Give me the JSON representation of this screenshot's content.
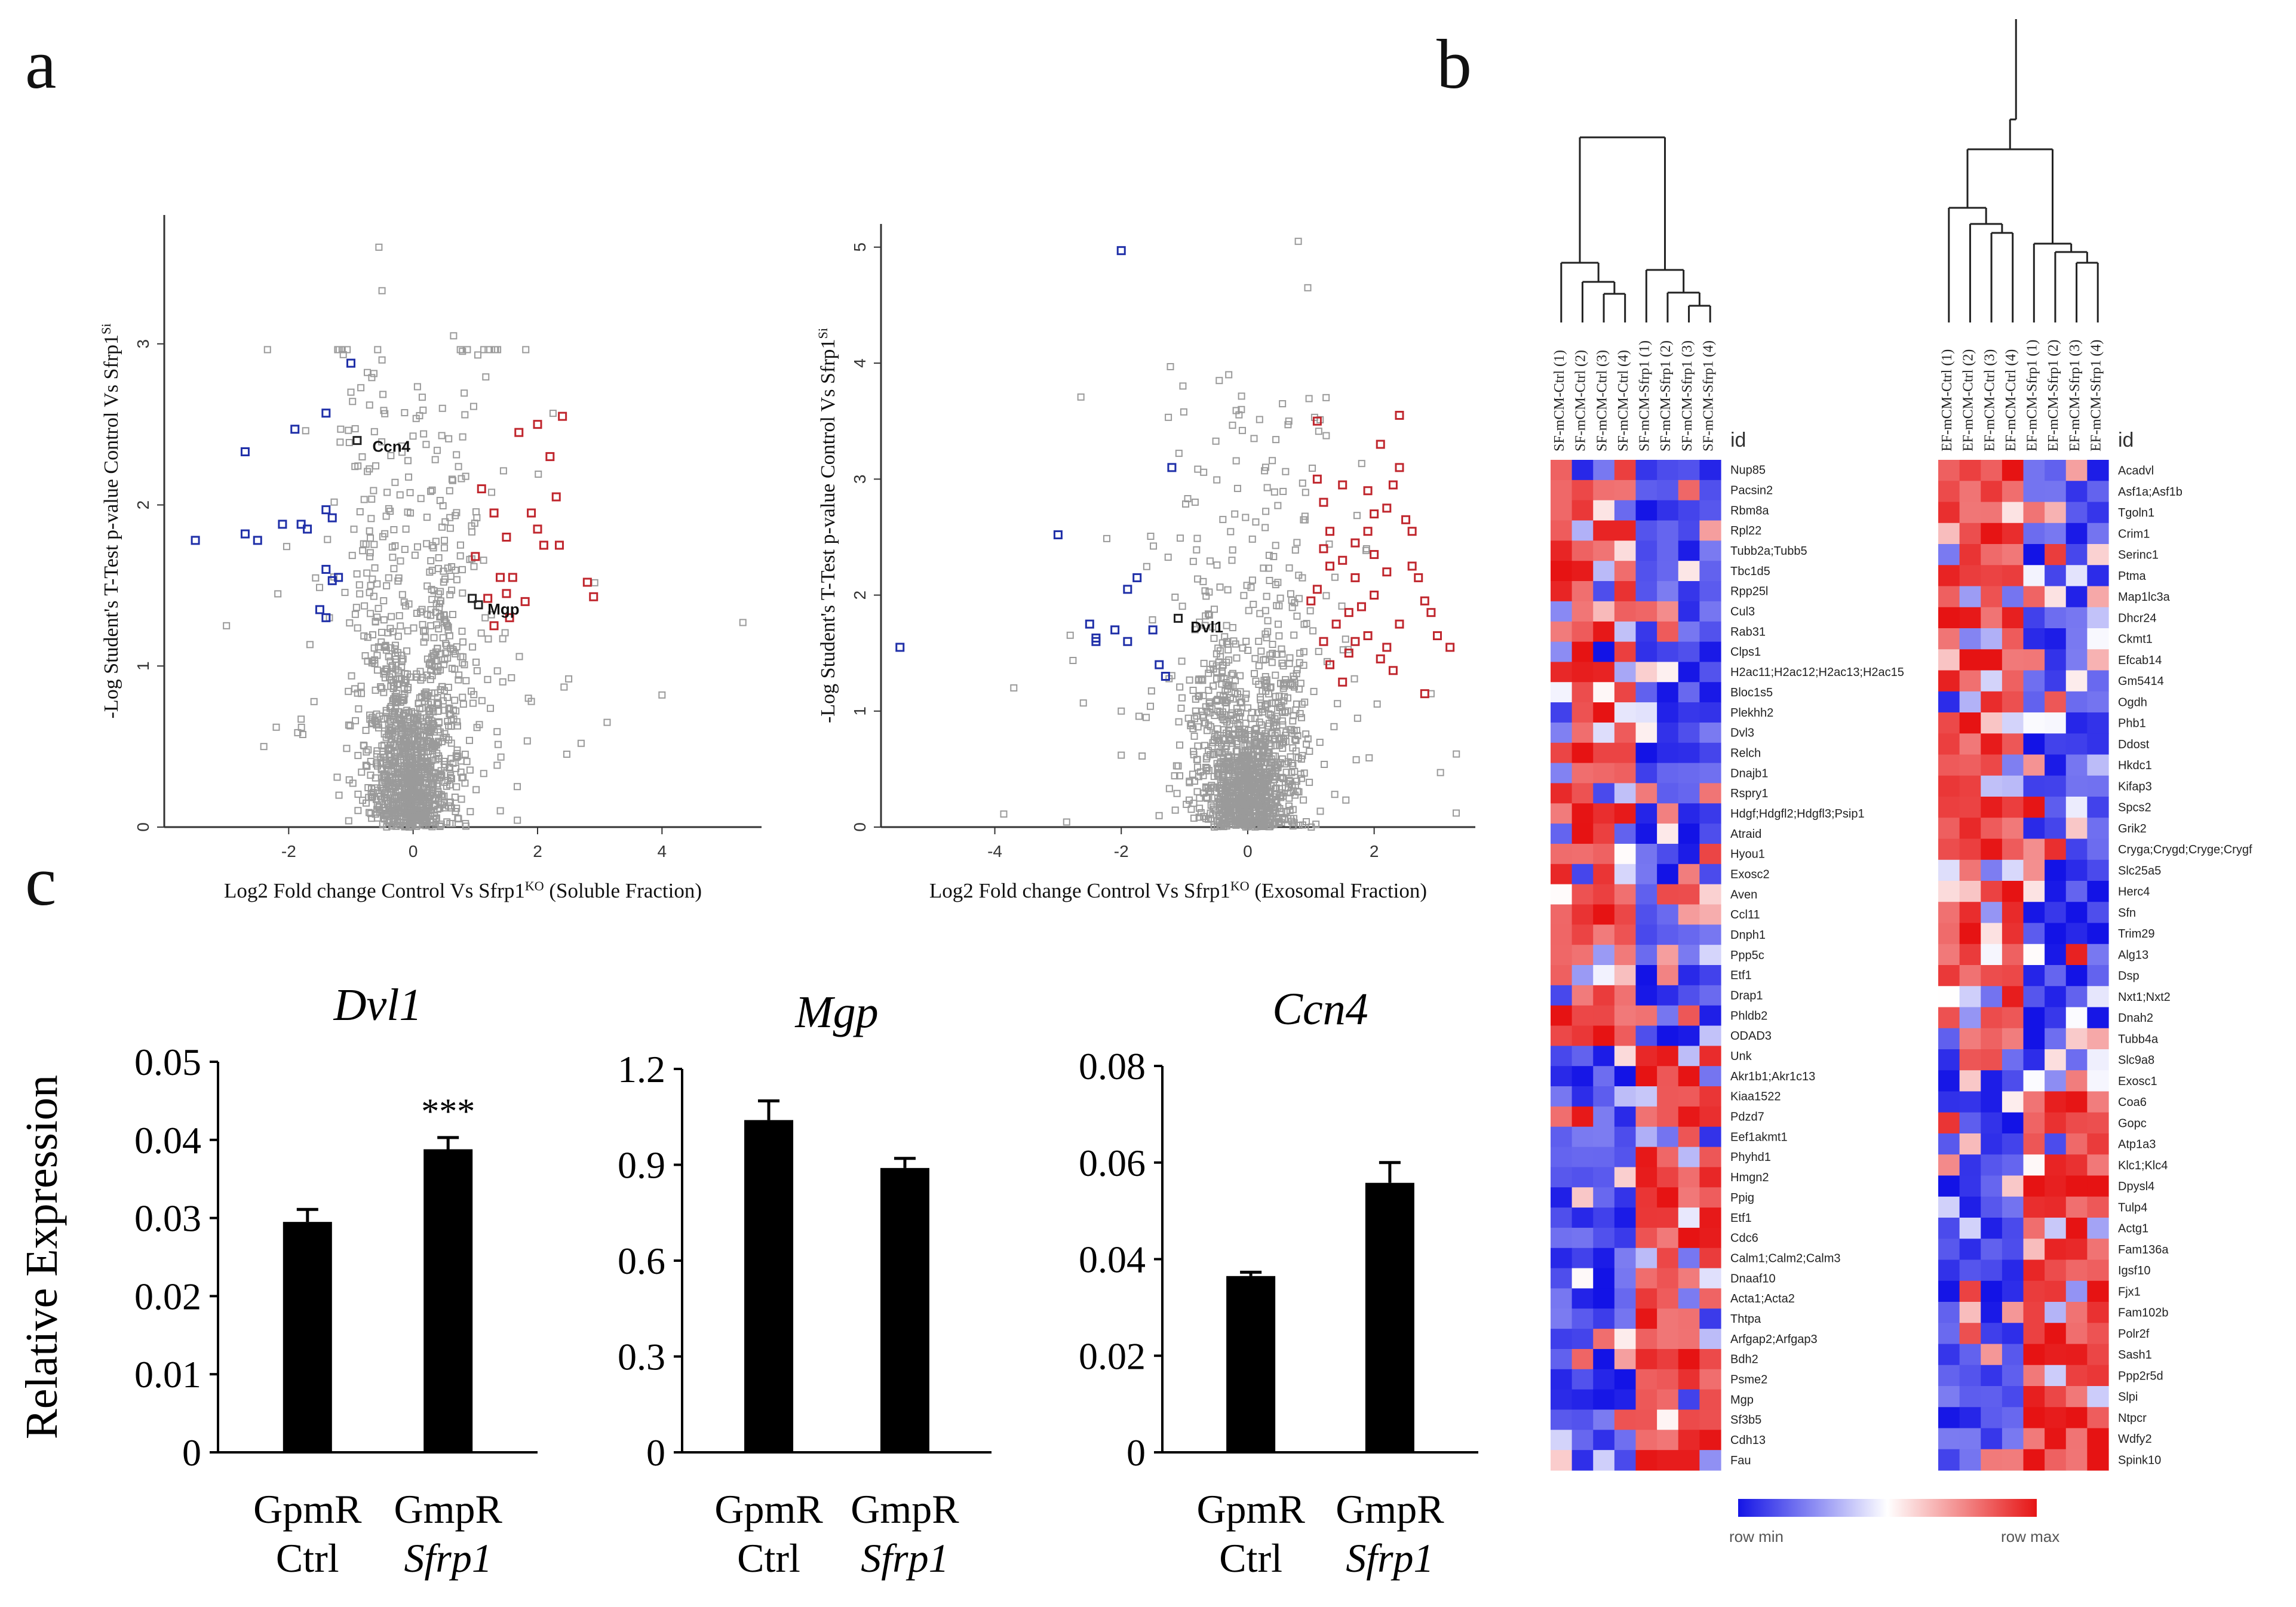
{
  "panels": {
    "a": "a",
    "b": "b",
    "c": "c"
  },
  "colors": {
    "up": "#c0262d",
    "down": "#1f2fa8",
    "ns": "#9a9a9a",
    "hit": "#222222",
    "heat_min": "#1515e6",
    "heat_max": "#e61515",
    "bar": "#000000"
  },
  "volcano_soluble": {
    "type": "scatter",
    "ylabel_main": "-Log Student's T-Test p-value Control Vs Sfrp1",
    "ylabel_sup": "Si",
    "xlabel_main": "Log2 Fold change Control Vs  Sfrp1",
    "xlabel_sup": "KO",
    "xlabel_tail": "(Soluble Fraction)",
    "xlim": [
      -4,
      5.6
    ],
    "ylim": [
      0,
      3.8
    ],
    "xticks": [
      -2,
      0,
      2,
      4
    ],
    "yticks": [
      0,
      1,
      2,
      3
    ],
    "labels": [
      {
        "text": "Ccn4",
        "x": -0.75,
        "y": 2.36
      },
      {
        "text": "Mgp",
        "x": 1.1,
        "y": 1.35
      }
    ],
    "up": [
      [
        1.1,
        2.1
      ],
      [
        1.3,
        1.95
      ],
      [
        1.5,
        1.8
      ],
      [
        1.7,
        2.45
      ],
      [
        1.9,
        1.95
      ],
      [
        2.0,
        1.85
      ],
      [
        2.2,
        2.3
      ],
      [
        2.4,
        2.55
      ],
      [
        2.3,
        2.05
      ],
      [
        2.1,
        1.75
      ],
      [
        2.35,
        1.75
      ],
      [
        1.6,
        1.55
      ],
      [
        1.5,
        1.45
      ],
      [
        1.8,
        1.4
      ],
      [
        1.3,
        1.25
      ],
      [
        1.4,
        1.55
      ],
      [
        1.2,
        1.42
      ],
      [
        2.8,
        1.52
      ],
      [
        2.9,
        1.43
      ],
      [
        1.0,
        1.68
      ],
      [
        2.0,
        2.5
      ],
      [
        1.55,
        1.3
      ]
    ],
    "down": [
      [
        -3.5,
        1.78
      ],
      [
        -2.7,
        1.82
      ],
      [
        -2.5,
        1.78
      ],
      [
        -2.1,
        1.88
      ],
      [
        -1.8,
        1.88
      ],
      [
        -1.7,
        1.85
      ],
      [
        -1.4,
        1.97
      ],
      [
        -1.3,
        1.92
      ],
      [
        -2.7,
        2.33
      ],
      [
        -1.9,
        2.47
      ],
      [
        -1.4,
        2.57
      ],
      [
        -1.0,
        2.88
      ],
      [
        -1.4,
        1.6
      ],
      [
        -1.3,
        1.53
      ],
      [
        -1.2,
        1.55
      ],
      [
        -1.5,
        1.35
      ],
      [
        -1.4,
        1.3
      ]
    ],
    "hits": [
      [
        -0.9,
        2.4
      ],
      [
        0.95,
        1.42
      ],
      [
        1.05,
        1.38
      ]
    ],
    "outliers": [
      [
        -0.55,
        3.6
      ],
      [
        -0.5,
        3.33
      ],
      [
        0.65,
        3.05
      ],
      [
        -0.5,
        2.9
      ],
      [
        -0.7,
        2.62
      ],
      [
        -1.0,
        2.7
      ],
      [
        5.3,
        1.27
      ],
      [
        4.0,
        0.82
      ],
      [
        -3.0,
        1.25
      ],
      [
        -2.4,
        0.5
      ],
      [
        -2.2,
        0.62
      ],
      [
        -1.8,
        0.67
      ],
      [
        2.7,
        0.52
      ],
      [
        2.5,
        0.92
      ],
      [
        1.9,
        0.78
      ]
    ],
    "ns_seed": 17,
    "ns_count": 1300
  },
  "volcano_exosomal": {
    "type": "scatter",
    "ylabel_main": "-Log Student's T-Test p-value Control Vs Sfrp1",
    "ylabel_sup": "Si",
    "xlabel_main": "Log2 Fold change Control Vs  Sfrp1",
    "xlabel_sup": "KO",
    "xlabel_tail": "(Exosomal Fraction)",
    "xlim": [
      -5.8,
      3.6
    ],
    "ylim": [
      0,
      5.2
    ],
    "xticks": [
      -4,
      -2,
      0,
      2
    ],
    "yticks": [
      0,
      1,
      2,
      3,
      4,
      5
    ],
    "labels": [
      {
        "text": "Dvl1",
        "x": -1.0,
        "y": 1.72
      }
    ],
    "up": [
      [
        1.1,
        3.5
      ],
      [
        1.1,
        3.0
      ],
      [
        1.2,
        2.8
      ],
      [
        1.3,
        2.55
      ],
      [
        1.5,
        2.3
      ],
      [
        1.7,
        2.15
      ],
      [
        1.9,
        2.55
      ],
      [
        2.0,
        2.7
      ],
      [
        2.2,
        2.75
      ],
      [
        2.3,
        2.95
      ],
      [
        2.4,
        3.1
      ],
      [
        2.5,
        2.65
      ],
      [
        2.6,
        2.25
      ],
      [
        2.7,
        2.15
      ],
      [
        2.2,
        2.2
      ],
      [
        2.0,
        2.0
      ],
      [
        1.8,
        1.9
      ],
      [
        1.6,
        1.85
      ],
      [
        1.4,
        1.75
      ],
      [
        1.2,
        1.6
      ],
      [
        1.3,
        1.4
      ],
      [
        1.6,
        1.5
      ],
      [
        1.9,
        1.65
      ],
      [
        2.1,
        1.45
      ],
      [
        2.2,
        1.55
      ],
      [
        2.4,
        1.75
      ],
      [
        2.8,
        1.95
      ],
      [
        3.0,
        1.65
      ],
      [
        3.2,
        1.55
      ],
      [
        1.1,
        2.05
      ],
      [
        1.3,
        2.25
      ],
      [
        1.7,
        2.45
      ],
      [
        1.9,
        2.9
      ],
      [
        2.1,
        3.3
      ],
      [
        2.4,
        3.55
      ],
      [
        1.5,
        2.95
      ],
      [
        1.7,
        1.6
      ],
      [
        2.3,
        1.35
      ],
      [
        2.8,
        1.15
      ],
      [
        1.5,
        1.25
      ],
      [
        2.0,
        2.35
      ],
      [
        2.6,
        2.55
      ],
      [
        1.2,
        2.4
      ],
      [
        2.9,
        1.85
      ],
      [
        1.0,
        1.95
      ]
    ],
    "down": [
      [
        -5.5,
        1.55
      ],
      [
        -3.0,
        2.52
      ],
      [
        -2.5,
        1.75
      ],
      [
        -2.4,
        1.6
      ],
      [
        -2.1,
        1.7
      ],
      [
        -1.9,
        2.05
      ],
      [
        -1.75,
        2.15
      ],
      [
        -1.9,
        1.6
      ],
      [
        -1.5,
        1.7
      ],
      [
        -1.4,
        1.4
      ],
      [
        -1.3,
        1.3
      ],
      [
        -1.2,
        3.1
      ],
      [
        -2.0,
        4.97
      ],
      [
        -2.4,
        1.63
      ]
    ],
    "hits": [
      [
        -1.1,
        1.8
      ]
    ],
    "outliers": [
      [
        0.8,
        5.05
      ],
      [
        0.95,
        4.65
      ],
      [
        -0.3,
        3.9
      ],
      [
        -0.45,
        3.85
      ],
      [
        0.55,
        3.65
      ],
      [
        0.65,
        3.5
      ],
      [
        -3.7,
        1.2
      ],
      [
        -2.6,
        1.07
      ],
      [
        -2.0,
        1.0
      ],
      [
        -2.0,
        0.62
      ],
      [
        3.3,
        0.63
      ],
      [
        2.9,
        1.15
      ],
      [
        0.1,
        3.35
      ],
      [
        -0.1,
        3.6
      ]
    ],
    "ns_seed": 41,
    "ns_count": 1300
  },
  "heatmap": {
    "id_label": "id",
    "legend_min": "row min",
    "legend_max": "row max",
    "left": {
      "columns": [
        "SF-mCM-Ctrl (1)",
        "SF-mCM-Ctrl (2)",
        "SF-mCM-Ctrl (3)",
        "SF-mCM-Ctrl (4)",
        "SF-mCM-Sfrp1 (1)",
        "SF-mCM-Sfrp1 (2)",
        "SF-mCM-Sfrp1 (3)",
        "SF-mCM-Sfrp1 (4)"
      ],
      "rows": [
        "Nup85",
        "Pacsin2",
        "Rbm8a",
        "Rpl22",
        "Tubb2a;Tubb5",
        "Tbc1d5",
        "Rpp25l",
        "Cul3",
        "Rab31",
        "Clps1",
        "H2ac11;H2ac12;H2ac13;H2ac15",
        "Bloc1s5",
        "Plekhh2",
        "Dvl3",
        "Relch",
        "Dnajb1",
        "Rspry1",
        "Hdgf;Hdgfl2;Hdgfl3;Psip1",
        "Atraid",
        "Hyou1",
        "Exosc2",
        "Aven",
        "Ccl11",
        "Dnph1",
        "Ppp5c",
        "Etf1",
        "Drap1",
        "Phldb2",
        "ODAD3",
        "Unk",
        "Akr1b1;Akr1c13",
        "Kiaa1522",
        "Pdzd7",
        "Eef1akmt1",
        "Phyhd1",
        "Hmgn2",
        "Ppig",
        "Etf1",
        "Cdc6",
        "Calm1;Calm2;Calm3",
        "Dnaaf10",
        "Acta1;Acta2",
        "Thtpa",
        "Arfgap2;Arfgap3",
        "Bdh2",
        "Psme2",
        "Mgp",
        "Sf3b5",
        "Cdh13",
        "Fau"
      ],
      "split": 29,
      "seed": 7
    },
    "right": {
      "columns": [
        "EF-mCM-Ctrl (1)",
        "EF-mCM-Ctrl (2)",
        "EF-mCM-Ctrl (3)",
        "EF-mCM-Ctrl (4)",
        "EF-mCM-Sfrp1 (1)",
        "EF-mCM-Sfrp1 (2)",
        "EF-mCM-Sfrp1 (3)",
        "EF-mCM-Sfrp1 (4)"
      ],
      "rows": [
        "Acadvl",
        "Asf1a;Asf1b",
        "Tgoln1",
        "Crim1",
        "Serinc1",
        "Ptma",
        "Map1lc3a",
        "Dhcr24",
        "Ckmt1",
        "Efcab14",
        "Gm5414",
        "Ogdh",
        "Phb1",
        "Ddost",
        "Hkdc1",
        "Kifap3",
        "Spcs2",
        "Grik2",
        "Cryga;Crygd;Cryge;Crygf",
        "Slc25a5",
        "Herc4",
        "Sfn",
        "Trim29",
        "Alg13",
        "Dsp",
        "Nxt1;Nxt2",
        "Dnah2",
        "Tubb4a",
        "Slc9a8",
        "Exosc1",
        "Coa6",
        "Gopc",
        "Atp1a3",
        "Klc1;Klc4",
        "Dpysl4",
        "Tulp4",
        "Actg1",
        "Fam136a",
        "Igsf10",
        "Fjx1",
        "Fam102b",
        "Polr2f",
        "Sash1",
        "Ppp2r5d",
        "Slpi",
        "Ntpcr",
        "Wdfy2",
        "Spink10"
      ],
      "split": 29,
      "seed": 23
    }
  },
  "chart_data": [
    {
      "type": "bar",
      "title": "Dvl1",
      "ylabel": "Relative Expression",
      "categories": [
        [
          "GpmR",
          "Ctrl"
        ],
        [
          "GmpR",
          "Sfrp1"
        ]
      ],
      "values": [
        0.0295,
        0.0388
      ],
      "errors": [
        0.0016,
        0.0015
      ],
      "ylim": [
        0,
        0.05
      ],
      "yticks": [
        "0",
        "0.01",
        "0.02",
        "0.03",
        "0.04",
        "0.05"
      ],
      "significance": [
        null,
        "***"
      ]
    },
    {
      "type": "bar",
      "title": "Mgp",
      "ylabel": "",
      "categories": [
        [
          "GpmR",
          "Ctrl"
        ],
        [
          "GmpR",
          "Sfrp1"
        ]
      ],
      "values": [
        1.04,
        0.89
      ],
      "errors": [
        0.06,
        0.03
      ],
      "ylim": [
        0,
        1.2
      ],
      "yticks": [
        "0",
        "0.3",
        "0.6",
        "0.9",
        "1.2"
      ],
      "significance": [
        null,
        null
      ]
    },
    {
      "type": "bar",
      "title": "Ccn4",
      "ylabel": "",
      "categories": [
        [
          "GpmR",
          "Ctrl"
        ],
        [
          "GmpR",
          "Sfrp1"
        ]
      ],
      "values": [
        0.0365,
        0.0558
      ],
      "errors": [
        0.0008,
        0.0042
      ],
      "ylim": [
        0,
        0.08
      ],
      "yticks": [
        "0",
        "0.02",
        "0.04",
        "0.06",
        "0.08"
      ],
      "significance": [
        null,
        null
      ]
    }
  ]
}
